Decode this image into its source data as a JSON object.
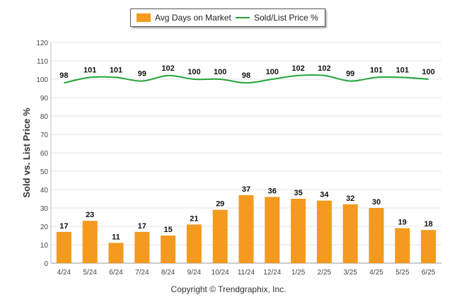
{
  "chart_data": {
    "type": "bar",
    "categories": [
      "4/24",
      "5/24",
      "6/24",
      "7/24",
      "8/24",
      "9/24",
      "10/24",
      "11/24",
      "12/24",
      "1/25",
      "2/25",
      "3/25",
      "4/25",
      "5/25",
      "6/25"
    ],
    "series": [
      {
        "name": "Avg Days on Market",
        "type": "bar",
        "color": "#f39a1f",
        "values": [
          17,
          23,
          11,
          17,
          15,
          21,
          29,
          37,
          36,
          35,
          34,
          32,
          30,
          19,
          18
        ]
      },
      {
        "name": "Sold/List Price %",
        "type": "line",
        "color": "#22a33a",
        "values": [
          98,
          101,
          101,
          99,
          102,
          100,
          100,
          98,
          100,
          102,
          102,
          99,
          101,
          101,
          100
        ]
      }
    ],
    "ylabel": "Sold vs. List Price %",
    "ylim": [
      0,
      120
    ],
    "yticks": [
      0,
      10,
      20,
      30,
      40,
      50,
      60,
      70,
      80,
      90,
      100,
      110,
      120
    ],
    "grid": true,
    "legend": "top-center"
  },
  "footer": {
    "copyright": "Copyright © Trendgraphix, Inc."
  }
}
